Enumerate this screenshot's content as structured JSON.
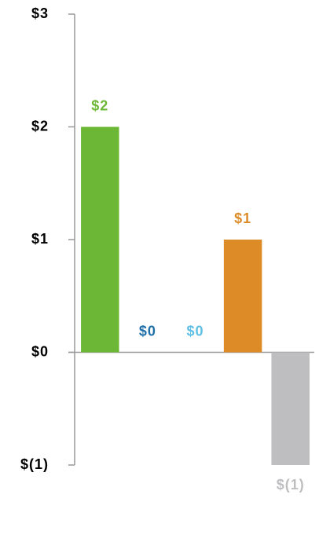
{
  "chart_data": {
    "type": "bar",
    "categories": [
      null,
      null,
      null,
      null,
      null
    ],
    "values": [
      2,
      0,
      0,
      1,
      -1
    ],
    "value_labels": [
      "$2",
      "$0",
      "$0",
      "$1",
      "$(1)"
    ],
    "colors": [
      "#6cb836",
      "#1e6ea8",
      "#5dbfe6",
      "#dc8b27",
      "#bebec0"
    ],
    "ylim": [
      -1,
      3
    ],
    "yticks": [
      {
        "value": -1,
        "label": "$(1)"
      },
      {
        "value": 0,
        "label": "$0"
      },
      {
        "value": 1,
        "label": "$1"
      },
      {
        "value": 2,
        "label": "$2"
      },
      {
        "value": 3,
        "label": "$3"
      }
    ]
  }
}
